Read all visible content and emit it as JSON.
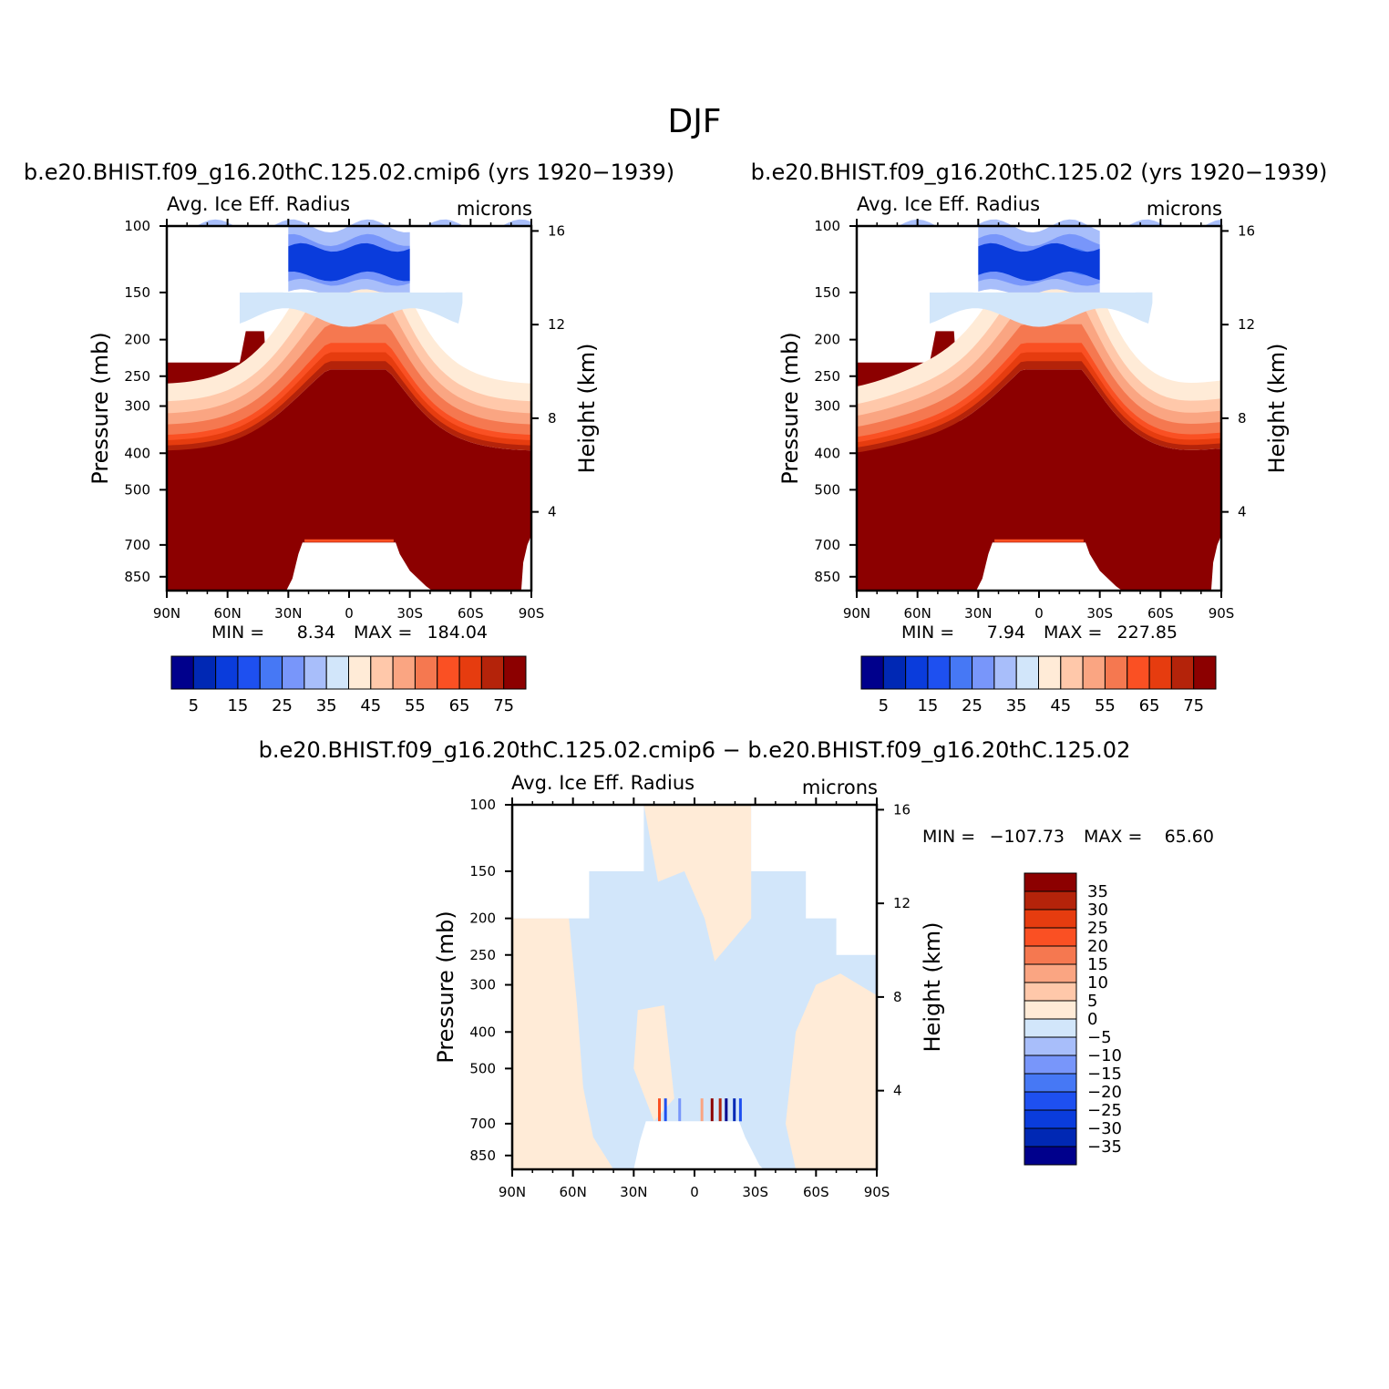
{
  "page_title": "DJF",
  "chart_data": [
    {
      "type": "heatmap",
      "title": "b.e20.BHIST.f09_g16.20thC.125.02.cmip6 (yrs 1920−1939)",
      "left_string": "Avg. Ice Eff. Radius",
      "right_string": "microns",
      "ylabel": "Pressure (mb)",
      "ylabel_right": "Height (km)",
      "x_ticks": [
        "90N",
        "60N",
        "30N",
        "0",
        "30S",
        "60S",
        "90S"
      ],
      "y_ticks": [
        "100",
        "150",
        "200",
        "250",
        "300",
        "400",
        "500",
        "700",
        "850"
      ],
      "y_ticks_right": [
        "16",
        "12",
        "8",
        "4"
      ],
      "ylim": [
        100,
        925
      ],
      "stats": {
        "min_label": "MIN =",
        "min": "8.34",
        "max_label": "MAX =",
        "max": "184.04"
      },
      "colorbar": {
        "levels": [
          "5",
          "15",
          "25",
          "35",
          "45",
          "55",
          "65",
          "75"
        ],
        "colors": [
          "#00008C",
          "#0028B4",
          "#0A3CDC",
          "#1E50F0",
          "#4678F5",
          "#7896FA",
          "#A8BEFA",
          "#D2E6FA",
          "#FFEBD7",
          "#FFC8AA",
          "#FAA582",
          "#F57850",
          "#FA5023",
          "#E63C0F",
          "#B4230A",
          "#8C0000"
        ]
      }
    },
    {
      "type": "heatmap",
      "title": "b.e20.BHIST.f09_g16.20thC.125.02 (yrs 1920−1939)",
      "left_string": "Avg. Ice Eff. Radius",
      "right_string": "microns",
      "ylabel": "Pressure (mb)",
      "ylabel_right": "Height (km)",
      "x_ticks": [
        "90N",
        "60N",
        "30N",
        "0",
        "30S",
        "60S",
        "90S"
      ],
      "y_ticks": [
        "100",
        "150",
        "200",
        "250",
        "300",
        "400",
        "500",
        "700",
        "850"
      ],
      "y_ticks_right": [
        "16",
        "12",
        "8",
        "4"
      ],
      "ylim": [
        100,
        925
      ],
      "stats": {
        "min_label": "MIN =",
        "min": "7.94",
        "max_label": "MAX =",
        "max": "227.85"
      },
      "colorbar": {
        "levels": [
          "5",
          "15",
          "25",
          "35",
          "45",
          "55",
          "65",
          "75"
        ],
        "colors": [
          "#00008C",
          "#0028B4",
          "#0A3CDC",
          "#1E50F0",
          "#4678F5",
          "#7896FA",
          "#A8BEFA",
          "#D2E6FA",
          "#FFEBD7",
          "#FFC8AA",
          "#FAA582",
          "#F57850",
          "#FA5023",
          "#E63C0F",
          "#B4230A",
          "#8C0000"
        ]
      }
    },
    {
      "type": "heatmap",
      "title": "b.e20.BHIST.f09_g16.20thC.125.02.cmip6 − b.e20.BHIST.f09_g16.20thC.125.02",
      "left_string": "Avg. Ice Eff. Radius",
      "right_string": "microns",
      "ylabel": "Pressure (mb)",
      "ylabel_right": "Height (km)",
      "x_ticks": [
        "90N",
        "60N",
        "30N",
        "0",
        "30S",
        "60S",
        "90S"
      ],
      "y_ticks": [
        "100",
        "150",
        "200",
        "250",
        "300",
        "400",
        "500",
        "700",
        "850"
      ],
      "y_ticks_right": [
        "16",
        "12",
        "8",
        "4"
      ],
      "ylim": [
        100,
        925
      ],
      "stats": {
        "min_label": "MIN =",
        "min": "−107.73",
        "max_label": "MAX =",
        "max": "65.60"
      },
      "colorbar": {
        "levels": [
          "35",
          "30",
          "25",
          "20",
          "15",
          "10",
          "5",
          "0",
          "−5",
          "−10",
          "−15",
          "−20",
          "−25",
          "−30",
          "−35"
        ],
        "colors": [
          "#8C0000",
          "#B4230A",
          "#E63C0F",
          "#FA5023",
          "#F57850",
          "#FAA582",
          "#FFC8AA",
          "#FFEBD7",
          "#D2E6FA",
          "#A8BEFA",
          "#7896FA",
          "#4678F5",
          "#1E50F0",
          "#0A3CDC",
          "#0028B4",
          "#00008C"
        ]
      }
    }
  ]
}
